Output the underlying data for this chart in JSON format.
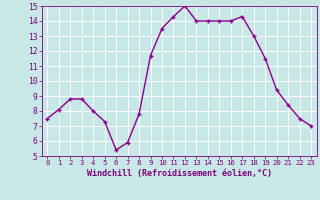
{
  "x": [
    0,
    1,
    2,
    3,
    4,
    5,
    6,
    7,
    8,
    9,
    10,
    11,
    12,
    13,
    14,
    15,
    16,
    17,
    18,
    19,
    20,
    21,
    22,
    23
  ],
  "y": [
    7.5,
    8.1,
    8.8,
    8.8,
    8.0,
    7.3,
    5.4,
    5.9,
    7.8,
    11.7,
    13.5,
    14.3,
    15.0,
    14.0,
    14.0,
    14.0,
    14.0,
    14.3,
    13.0,
    11.5,
    9.4,
    8.4,
    7.5,
    7.0
  ],
  "line_color": "#8b008b",
  "marker": "P",
  "bg_color": "#c8e8e8",
  "grid_color": "#b0d0d0",
  "xlabel": "Windchill (Refroidissement éolien,°C)",
  "xlim": [
    -0.5,
    23.5
  ],
  "ylim": [
    5,
    15
  ],
  "yticks": [
    5,
    6,
    7,
    8,
    9,
    10,
    11,
    12,
    13,
    14,
    15
  ],
  "xticks": [
    0,
    1,
    2,
    3,
    4,
    5,
    6,
    7,
    8,
    9,
    10,
    11,
    12,
    13,
    14,
    15,
    16,
    17,
    18,
    19,
    20,
    21,
    22,
    23
  ],
  "tick_color": "#7b007b",
  "label_color": "#7b007b",
  "linewidth": 1.0,
  "markersize": 3.5,
  "xlabel_fontsize": 6.0,
  "tick_fontsize_x": 5.2,
  "tick_fontsize_y": 5.8
}
